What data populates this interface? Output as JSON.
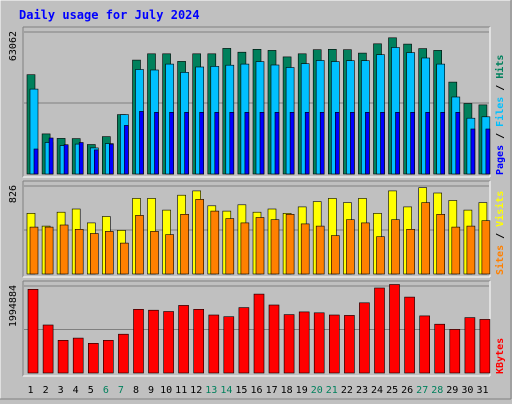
{
  "title": "Daily usage for July 2024",
  "colors": {
    "background": "#c0c0c0",
    "panel": "#c0c0c0",
    "title": "#0000ff",
    "hits": "#00805c",
    "files": "#00c0ff",
    "pages": "#0000ff",
    "visits": "#ffff00",
    "sites": "#ff8000",
    "kbytes": "#ff0000",
    "weekend": "#00805c",
    "weekday": "#000000"
  },
  "chart_data": [
    {
      "type": "bar",
      "name": "hits-files-pages",
      "ymax_label": "63062",
      "ylim": [
        0,
        63062
      ],
      "legend": [
        "Pages",
        "Files",
        "Hits"
      ],
      "series": [
        {
          "name": "Hits",
          "values": [
            44100,
            17800,
            15800,
            15700,
            13100,
            16600,
            26400,
            50600,
            53400,
            53400,
            50000,
            53400,
            53400,
            55800,
            54100,
            55400,
            54900,
            52000,
            53400,
            55200,
            55400,
            55200,
            53700,
            57800,
            60500,
            57700,
            55700,
            54900,
            40800,
            31300,
            30700
          ]
        },
        {
          "name": "Files",
          "values": [
            37700,
            14000,
            12600,
            13300,
            11600,
            13500,
            26400,
            46400,
            46200,
            48800,
            45100,
            47500,
            47800,
            48300,
            48800,
            49900,
            48400,
            47300,
            49000,
            50400,
            49900,
            50300,
            50300,
            53000,
            56200,
            53900,
            51500,
            48800,
            34200,
            24800,
            25400
          ]
        },
        {
          "name": "Pages",
          "values": [
            11100,
            16000,
            13000,
            14000,
            10700,
            13300,
            21600,
            27800,
            27400,
            27400,
            27400,
            27400,
            27400,
            27400,
            27400,
            27400,
            27400,
            27400,
            27400,
            27400,
            27400,
            27400,
            27400,
            27400,
            27400,
            27400,
            27400,
            27400,
            27400,
            20000,
            20000
          ]
        }
      ]
    },
    {
      "type": "bar",
      "name": "visits-sites",
      "ymax_label": "826",
      "ylim": [
        0,
        826
      ],
      "legend": [
        "Sites",
        "Visits"
      ],
      "series": [
        {
          "name": "Visits",
          "values": [
            570,
            450,
            580,
            610,
            480,
            540,
            410,
            710,
            710,
            600,
            740,
            780,
            640,
            590,
            650,
            580,
            610,
            570,
            630,
            680,
            710,
            670,
            710,
            570,
            780,
            630,
            810,
            760,
            690,
            600,
            670
          ]
        },
        {
          "name": "Sites",
          "values": [
            440,
            440,
            460,
            420,
            380,
            400,
            290,
            550,
            400,
            370,
            560,
            700,
            590,
            520,
            480,
            530,
            510,
            560,
            470,
            450,
            360,
            510,
            480,
            350,
            510,
            420,
            670,
            560,
            440,
            450,
            500
          ]
        }
      ]
    },
    {
      "type": "bar",
      "name": "kbytes",
      "ymax_label": "1994884",
      "ylim": [
        0,
        1994884
      ],
      "legend": [
        "KBytes"
      ],
      "series": [
        {
          "name": "KBytes",
          "values": [
            1920000,
            1100000,
            750000,
            800000,
            680000,
            750000,
            890000,
            1460000,
            1440000,
            1410000,
            1550000,
            1460000,
            1330000,
            1290000,
            1500000,
            1810000,
            1560000,
            1340000,
            1400000,
            1380000,
            1330000,
            1320000,
            1610000,
            1950000,
            2030000,
            1740000,
            1310000,
            1120000,
            1000000,
            1270000,
            1230000
          ]
        }
      ]
    }
  ],
  "days": [
    "1",
    "2",
    "3",
    "4",
    "5",
    "6",
    "7",
    "8",
    "9",
    "10",
    "11",
    "12",
    "13",
    "14",
    "15",
    "16",
    "17",
    "18",
    "19",
    "20",
    "21",
    "22",
    "23",
    "24",
    "25",
    "26",
    "27",
    "28",
    "29",
    "30",
    "31"
  ],
  "weekend_days": [
    "6",
    "7",
    "13",
    "14",
    "20",
    "21",
    "27",
    "28"
  ]
}
